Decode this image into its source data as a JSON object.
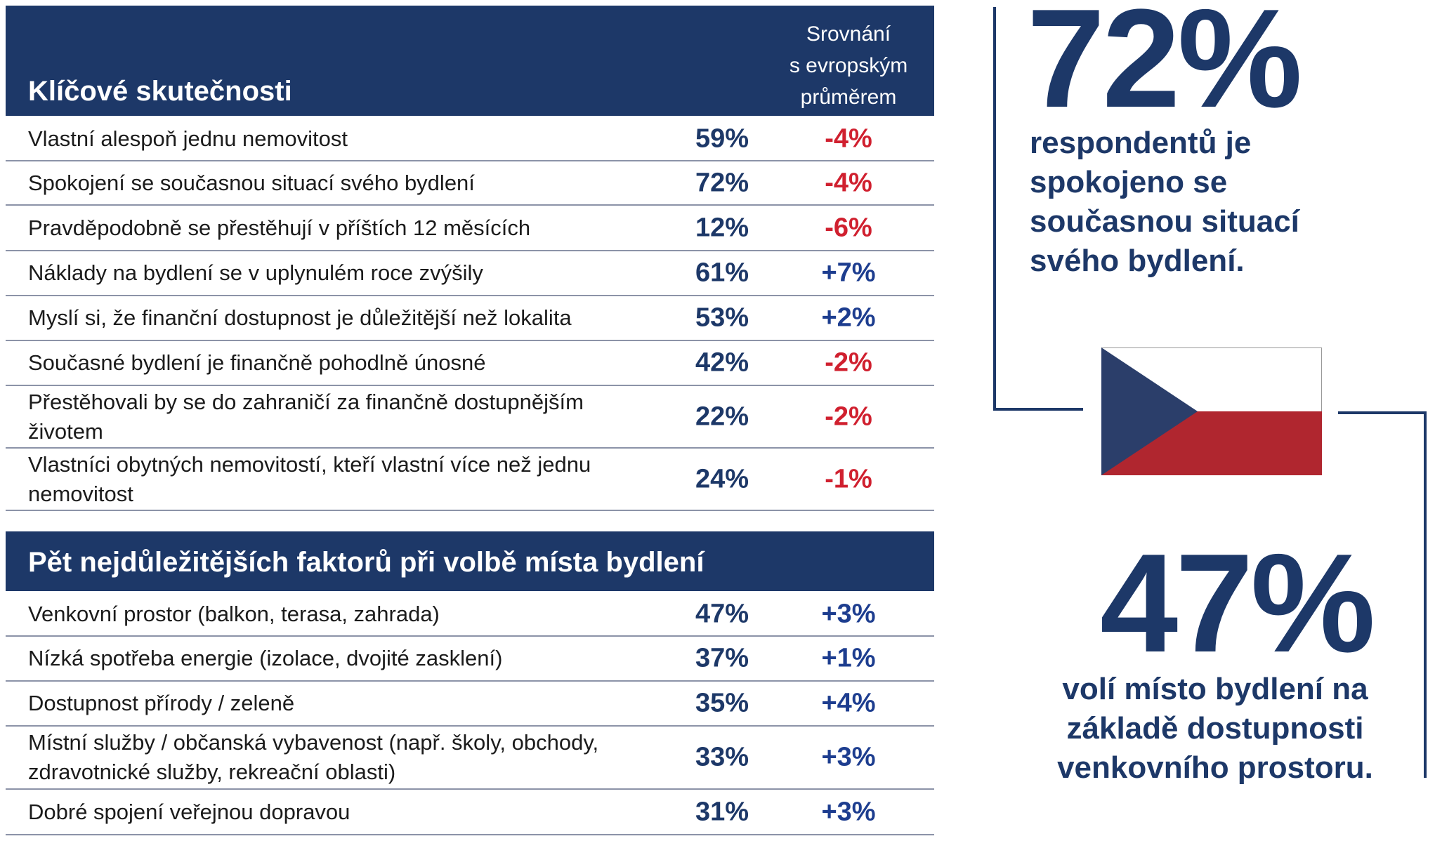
{
  "colors": {
    "navy": "#1d3868",
    "negative": "#d0202f",
    "positive": "#1d3d8f",
    "flag_red": "#b0262f",
    "flag_blue": "#2b3e6a"
  },
  "key_facts": {
    "title": "Klíčové skutečnosti",
    "comparison_header": [
      "Srovnání",
      "s evropským",
      "průměrem"
    ],
    "rows": [
      {
        "label": "Vlastní alespoň jednu nemovitost",
        "value": "59%",
        "comparison": "-4%"
      },
      {
        "label": "Spokojení se současnou situací svého bydlení",
        "value": "72%",
        "comparison": "-4%"
      },
      {
        "label": "Pravděpodobně se přestěhují v příštích 12 měsících",
        "value": "12%",
        "comparison": "-6%"
      },
      {
        "label": "Náklady na bydlení se v uplynulém roce zvýšily",
        "value": "61%",
        "comparison": "+7%"
      },
      {
        "label": "Myslí si, že finanční dostupnost je důležitější než lokalita",
        "value": "53%",
        "comparison": "+2%"
      },
      {
        "label": "Současné bydlení je finančně pohodlně únosné",
        "value": "42%",
        "comparison": "-2%"
      },
      {
        "label": "Přestěhovali by se do zahraničí za finančně dostupnějším životem",
        "value": "22%",
        "comparison": "-2%"
      },
      {
        "label": "Vlastníci obytných nemovitostí, kteří vlastní více než jednu nemovitost",
        "value": "24%",
        "comparison": "-1%"
      }
    ]
  },
  "top_factors": {
    "title": "Pět nejdůležitějších faktorů při volbě místa bydlení",
    "rows": [
      {
        "label": "Venkovní prostor (balkon, terasa, zahrada)",
        "value": "47%",
        "comparison": "+3%"
      },
      {
        "label": "Nízká spotřeba energie (izolace, dvojité zasklení)",
        "value": "37%",
        "comparison": "+1%"
      },
      {
        "label": "Dostupnost přírody / zeleně",
        "value": "35%",
        "comparison": "+4%"
      },
      {
        "label": "Místní služby / občanská vybavenost (např. školy, obchody, zdravotnické služby, rekreační oblasti)",
        "value": "33%",
        "comparison": "+3%"
      },
      {
        "label": "Dobré spojení veřejnou dopravou",
        "value": "31%",
        "comparison": "+3%"
      }
    ]
  },
  "highlight1": {
    "value": "72%",
    "text": [
      "respondentů je",
      "spokojeno se",
      "současnou situací",
      "svého bydlení."
    ]
  },
  "highlight2": {
    "value": "47%",
    "text": [
      "volí místo bydlení na",
      "základě dostupnosti",
      "venkovního prostoru."
    ]
  },
  "flag": {
    "icon": "czech-flag-icon"
  }
}
